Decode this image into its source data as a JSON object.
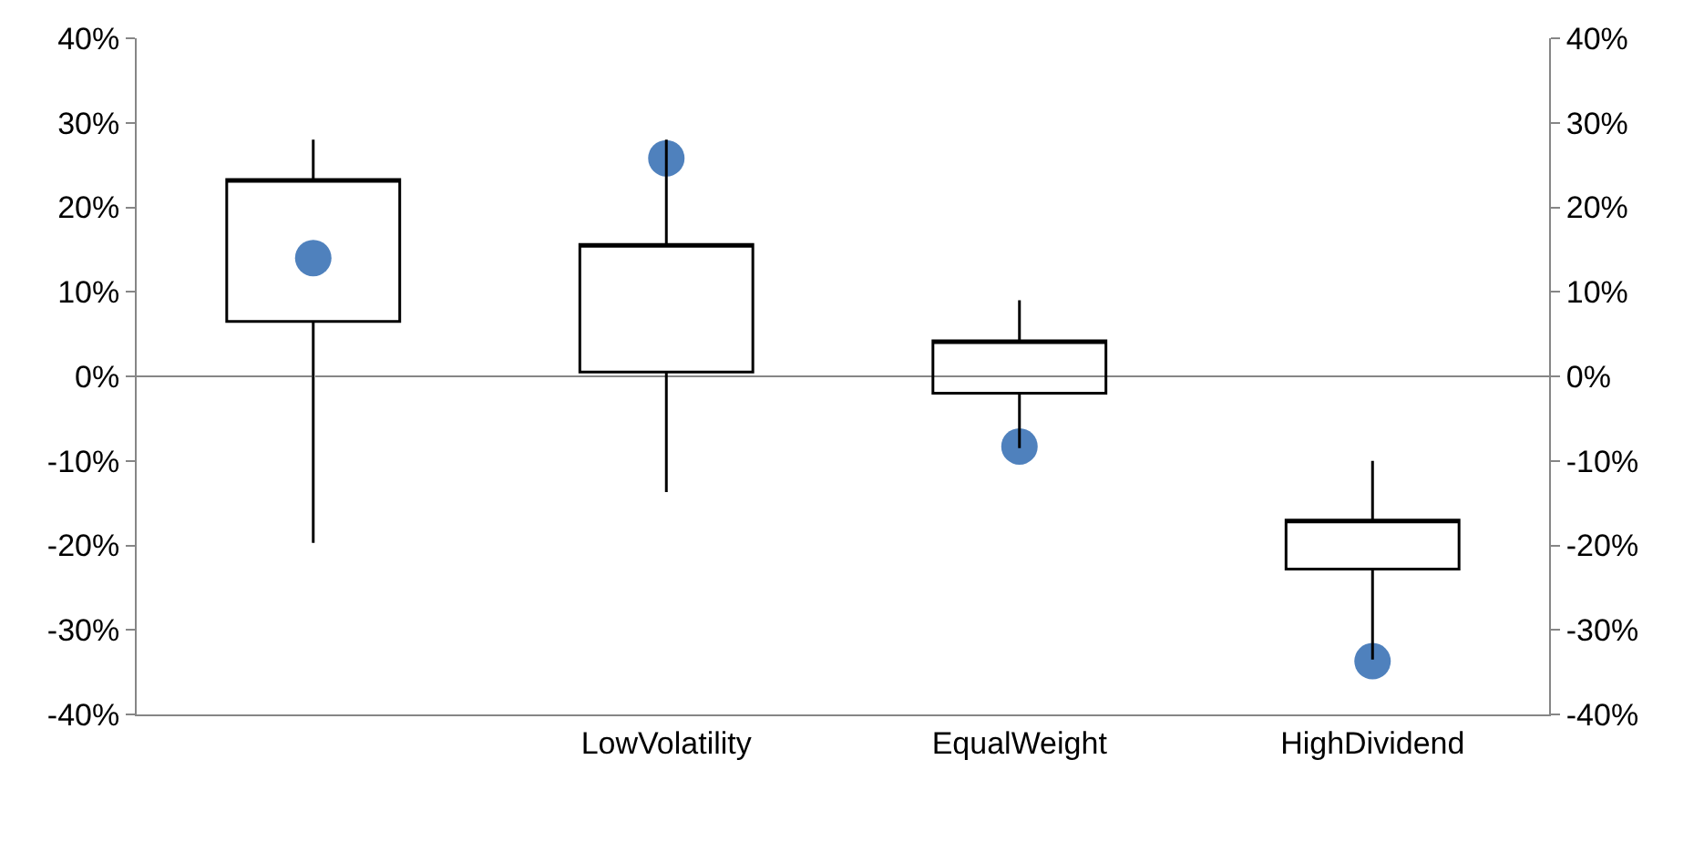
{
  "chart_data": {
    "type": "candlestick",
    "categories": [
      null,
      "LowVolatility",
      "EqualWeight",
      "HighDividend"
    ],
    "ohlc": [
      [
        6.5,
        28,
        -19.7,
        23.3
      ],
      [
        0.5,
        28,
        -13.7,
        15.6
      ],
      [
        -2,
        9,
        -8.5,
        4.2
      ],
      [
        -22.8,
        -10,
        -33.5,
        -17
      ]
    ],
    "series": [
      {
        "type": "scatter",
        "color": "#4f81bd",
        "values": [
          14,
          25.8,
          -8.3,
          -33.7
        ]
      }
    ],
    "marker": "circle",
    "ylim": [
      -40,
      40
    ],
    "yticks": [
      {
        "value": -40,
        "label": "-40%"
      },
      {
        "value": -30,
        "label": "-30%"
      },
      {
        "value": -20,
        "label": "-20%"
      },
      {
        "value": -10,
        "label": "-10%"
      },
      {
        "value": 0,
        "label": "0%"
      },
      {
        "value": 10,
        "label": "10%"
      },
      {
        "value": 20,
        "label": "20%"
      },
      {
        "value": 30,
        "label": "30%"
      },
      {
        "value": 40,
        "label": "40%"
      }
    ],
    "y2lim": [
      -40,
      40
    ],
    "y2ticks": [
      {
        "value": -40,
        "label": "-40%"
      },
      {
        "value": -30,
        "label": "-30%"
      },
      {
        "value": -20,
        "label": "-20%"
      },
      {
        "value": -10,
        "label": "-10%"
      },
      {
        "value": 0,
        "label": "0%"
      },
      {
        "value": 10,
        "label": "10%"
      },
      {
        "value": 20,
        "label": "20%"
      },
      {
        "value": 30,
        "label": "30%"
      },
      {
        "value": 40,
        "label": "40%"
      }
    ],
    "ref_lines": [
      {
        "axis": "y",
        "value": 0,
        "color": "#868686"
      }
    ],
    "grid": false
  }
}
